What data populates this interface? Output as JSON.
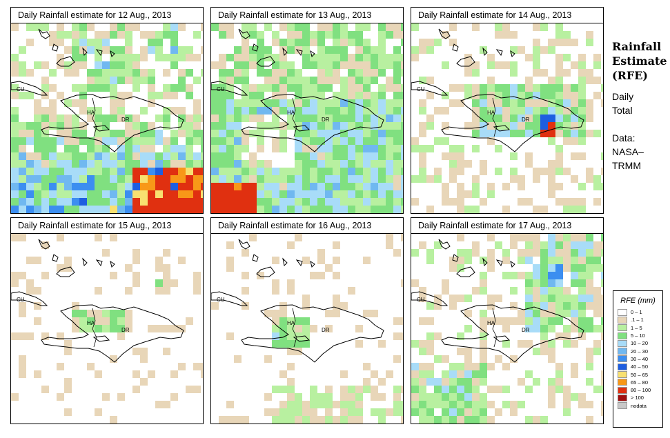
{
  "panels": [
    {
      "title": "Daily Rainfall estimate for  12 Aug., 2013",
      "labels": {
        "cu": "CU",
        "ha": "HA",
        "dr": "DR"
      }
    },
    {
      "title": "Daily Rainfall estimate for  13 Aug., 2013",
      "labels": {
        "cu": "CU",
        "ha": "HA",
        "dr": "DR"
      }
    },
    {
      "title": "Daily Rainfall estimate for  14 Aug., 2013",
      "labels": {
        "cu": "CU",
        "ha": "HA",
        "dr": "DR"
      }
    },
    {
      "title": "Daily Rainfall estimate for  15 Aug., 2013",
      "labels": {
        "cu": "CU",
        "ha": "HA",
        "dr": "DR"
      }
    },
    {
      "title": "Daily Rainfall estimate for  16 Aug., 2013",
      "labels": {
        "cu": "CU",
        "ha": "HA",
        "dr": "DR"
      }
    },
    {
      "title": "Daily Rainfall estimate for  17 Aug., 2013",
      "labels": {
        "cu": "CU",
        "ha": "HA",
        "dr": "DR"
      }
    }
  ],
  "sidebar": {
    "title_lines": [
      "Rainfall",
      "Estimate",
      "(RFE)"
    ],
    "period_lines": [
      "Daily",
      "Total"
    ],
    "source_lines": [
      "Data:",
      "NASA–",
      "TRMM"
    ]
  },
  "legend": {
    "title": "RFE (mm)",
    "items": [
      {
        "label": "0 – 1",
        "color": "#ffffff"
      },
      {
        "label": ".1 – 1",
        "color": "#e8d6b8"
      },
      {
        "label": "1 – 5",
        "color": "#b8f0a0"
      },
      {
        "label": "5 – 10",
        "color": "#80e080"
      },
      {
        "label": "10 – 20",
        "color": "#a8dcf8"
      },
      {
        "label": "20 – 30",
        "color": "#70b8f0"
      },
      {
        "label": "30 – 40",
        "color": "#3c8ef0"
      },
      {
        "label": "40 – 50",
        "color": "#1e5ee0"
      },
      {
        "label": "50 – 65",
        "color": "#f8e070"
      },
      {
        "label": "65 – 80",
        "color": "#f89818"
      },
      {
        "label": "80 – 100",
        "color": "#e03010"
      },
      {
        "label": "> 100",
        "color": "#a01010"
      },
      {
        "label": "nodata",
        "color": "#c8c8c8"
      }
    ]
  }
}
